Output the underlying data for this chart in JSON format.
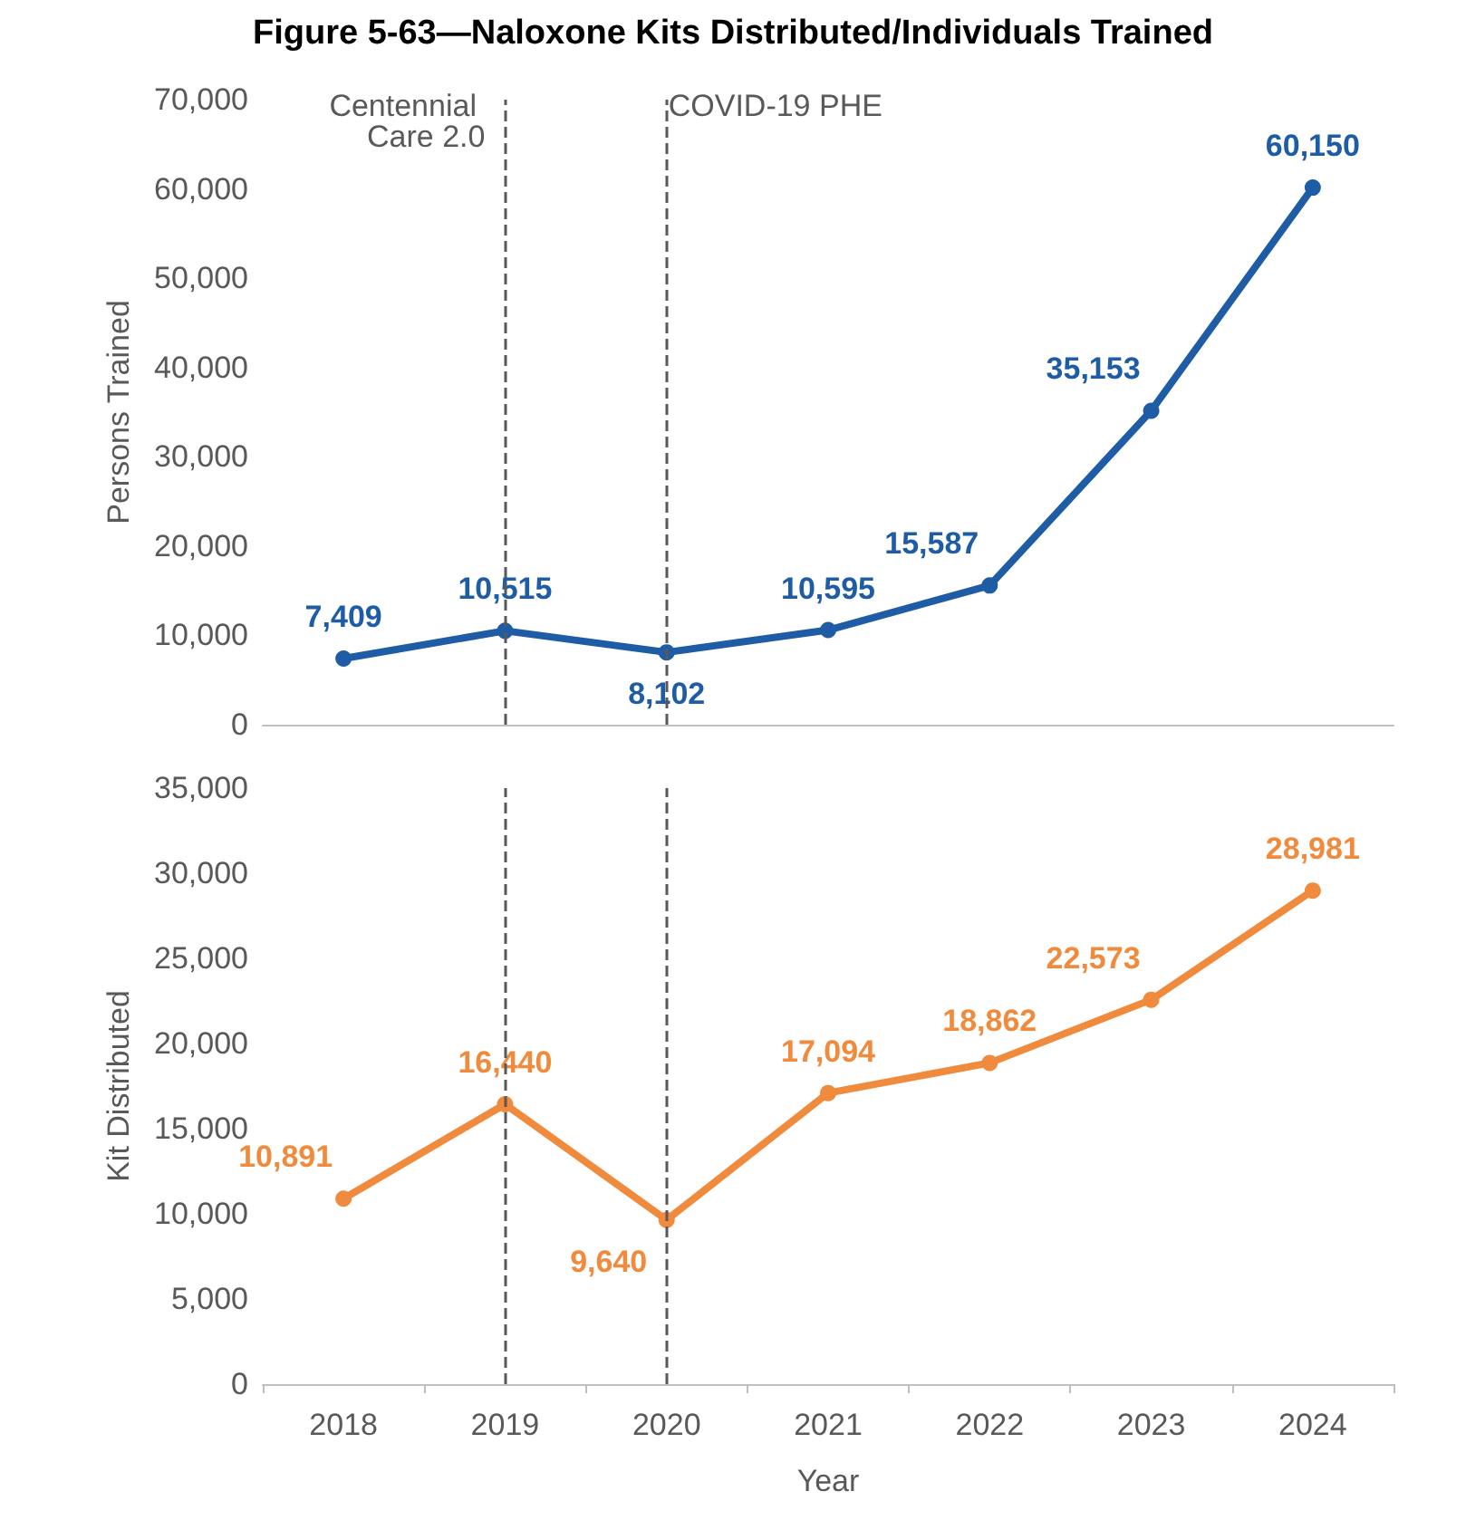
{
  "chart_data": [
    {
      "type": "line",
      "title": "Figure 5-63—Naloxone Kits Distributed/Individuals Trained",
      "ylabel": "Persons Trained",
      "categories": [
        "2018",
        "2019",
        "2020",
        "2021",
        "2022",
        "2023",
        "2024"
      ],
      "series": [
        {
          "color": "#1f5ca6",
          "values": [
            7409,
            10515,
            8102,
            10595,
            15587,
            35153,
            60150
          ],
          "value_labels": [
            "7,409",
            "10,515",
            "8,102",
            "10,595",
            "15,587",
            "35,153",
            "60,150"
          ]
        }
      ],
      "ylim": [
        0,
        70000
      ],
      "yticks": [
        0,
        {
          "value": 10000,
          "label": "10,000"
        },
        {
          "value": 20000,
          "label": "20,000"
        },
        {
          "value": 30000,
          "label": "30,000"
        },
        {
          "value": 40000,
          "label": "40,000"
        },
        {
          "value": 50000,
          "label": "50,000"
        },
        {
          "value": 60000,
          "label": "60,000"
        },
        {
          "value": 70000,
          "label": "70,000"
        }
      ],
      "ref_lines": [
        {
          "axis": "x",
          "value": "2019",
          "label": "Centennial Care 2.0",
          "line_style": "dashed",
          "color": "#595959"
        },
        {
          "axis": "x",
          "value": "2020",
          "label": "COVID-19 PHE",
          "line_style": "dashed",
          "color": "#595959"
        }
      ],
      "marker": "circle",
      "grid": false,
      "tick_labels": "y"
    },
    {
      "type": "line",
      "ylabel": "Kit Distributed",
      "xlabel": "Year",
      "categories": [
        "2018",
        "2019",
        "2020",
        "2021",
        "2022",
        "2023",
        "2024"
      ],
      "series": [
        {
          "color": "#f08a3c",
          "values": [
            10891,
            16440,
            9640,
            17094,
            18862,
            22573,
            28981
          ],
          "value_labels": [
            "10,891",
            "16,440",
            "9,640",
            "17,094",
            "18,862",
            "22,573",
            "28,981"
          ]
        }
      ],
      "ylim": [
        0,
        35000
      ],
      "yticks": [
        0,
        {
          "value": 5000,
          "label": "5,000"
        },
        {
          "value": 10000,
          "label": "10,000"
        },
        {
          "value": 15000,
          "label": "15,000"
        },
        {
          "value": 20000,
          "label": "20,000"
        },
        {
          "value": 25000,
          "label": "25,000"
        },
        {
          "value": 30000,
          "label": "30,000"
        },
        {
          "value": 35000,
          "label": "35,000"
        }
      ],
      "ref_lines": [
        {
          "axis": "x",
          "value": "2019",
          "line_style": "dashed",
          "color": "#595959"
        },
        {
          "axis": "x",
          "value": "2020",
          "line_style": "dashed",
          "color": "#595959"
        }
      ],
      "marker": "circle",
      "grid": false
    }
  ]
}
